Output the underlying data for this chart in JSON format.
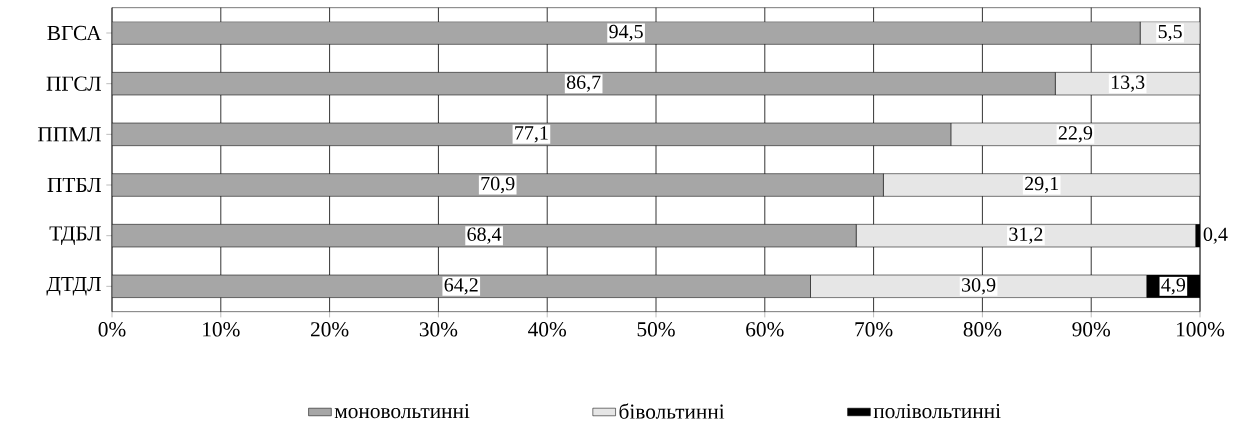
{
  "chart_data": {
    "type": "bar",
    "orientation": "horizontal",
    "stacked": true,
    "categories": [
      "ВГСА",
      "ПГСЛ",
      "ППМЛ",
      "ПТБЛ",
      "ТДБЛ",
      "ДТДЛ"
    ],
    "series": [
      {
        "name": "моновольтинні",
        "color": "#a6a6a6",
        "values": [
          94.5,
          86.7,
          77.1,
          70.9,
          68.4,
          64.2
        ],
        "value_labels": [
          "94,5",
          "86,7",
          "77,1",
          "70,9",
          "68,4",
          "64,2"
        ]
      },
      {
        "name": "бівольтинні",
        "color": "#e6e6e6",
        "values": [
          5.5,
          13.3,
          22.9,
          29.1,
          31.2,
          30.9
        ],
        "value_labels": [
          "5,5",
          "13,3",
          "22,9",
          "29,1",
          "31,2",
          "30,9"
        ]
      },
      {
        "name": "полівольтинні",
        "color": "#000000",
        "values": [
          0,
          0,
          0,
          0,
          0.4,
          4.9
        ],
        "value_labels": [
          null,
          null,
          null,
          null,
          "0,4",
          "4,9"
        ]
      }
    ],
    "xlim": [
      0,
      100
    ],
    "xticks": [
      {
        "value": 0,
        "label": "0%"
      },
      {
        "value": 10,
        "label": "10%"
      },
      {
        "value": 20,
        "label": "20%"
      },
      {
        "value": 30,
        "label": "30%"
      },
      {
        "value": 40,
        "label": "40%"
      },
      {
        "value": 50,
        "label": "50%"
      },
      {
        "value": 60,
        "label": "60%"
      },
      {
        "value": 70,
        "label": "70%"
      },
      {
        "value": 80,
        "label": "80%"
      },
      {
        "value": 90,
        "label": "90%"
      },
      {
        "value": 100,
        "label": "100%"
      }
    ],
    "grid": "x",
    "legend": "bottom"
  }
}
